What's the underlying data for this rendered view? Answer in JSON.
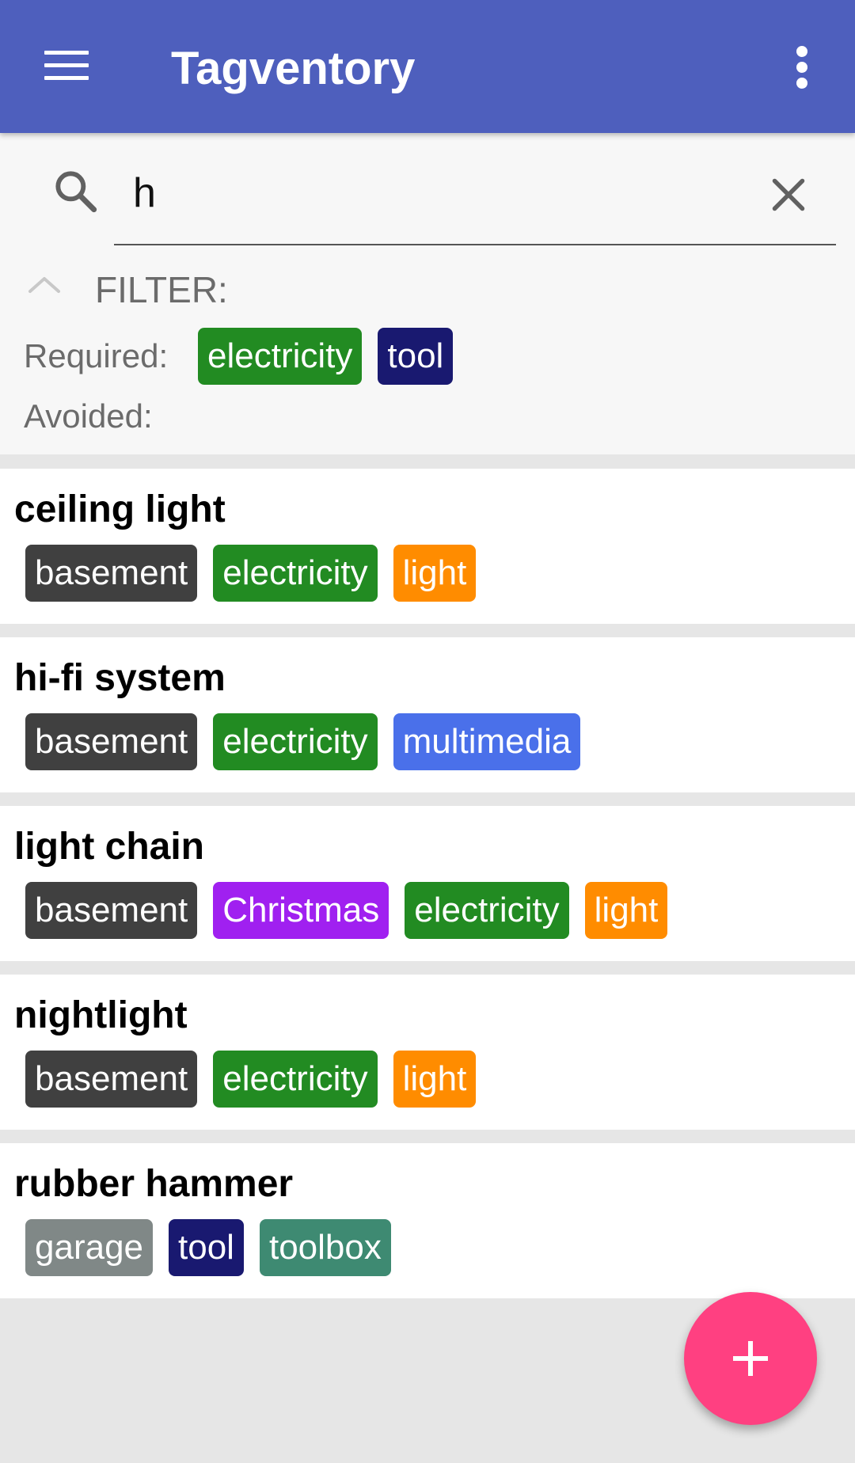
{
  "app": {
    "title": "Tagventory"
  },
  "search": {
    "value": "h"
  },
  "filter": {
    "label": "FILTER:",
    "required_label": "Required:",
    "avoided_label": "Avoided:",
    "required_tags": [
      {
        "label": "electricity",
        "color": "#228b22"
      },
      {
        "label": "tool",
        "color": "#191970"
      }
    ]
  },
  "items": [
    {
      "title": "ceiling light",
      "tags": [
        {
          "label": "basement",
          "color": "#404040"
        },
        {
          "label": "electricity",
          "color": "#228b22"
        },
        {
          "label": "light",
          "color": "#ff8c00"
        }
      ]
    },
    {
      "title": "hi-fi system",
      "tags": [
        {
          "label": "basement",
          "color": "#404040"
        },
        {
          "label": "electricity",
          "color": "#228b22"
        },
        {
          "label": "multimedia",
          "color": "#4a70ea"
        }
      ]
    },
    {
      "title": "light chain",
      "tags": [
        {
          "label": "basement",
          "color": "#404040"
        },
        {
          "label": "Christmas",
          "color": "#a020f0"
        },
        {
          "label": "electricity",
          "color": "#228b22"
        },
        {
          "label": "light",
          "color": "#ff8c00"
        }
      ]
    },
    {
      "title": "nightlight",
      "tags": [
        {
          "label": "basement",
          "color": "#404040"
        },
        {
          "label": "electricity",
          "color": "#228b22"
        },
        {
          "label": "light",
          "color": "#ff8c00"
        }
      ]
    },
    {
      "title": "rubber hammer",
      "tags": [
        {
          "label": "garage",
          "color": "#808887"
        },
        {
          "label": "tool",
          "color": "#191970"
        },
        {
          "label": "toolbox",
          "color": "#3e8a72"
        }
      ]
    }
  ],
  "icons": {
    "menu": "hamburger-menu-icon",
    "overflow": "more-vert-icon",
    "search": "search-icon",
    "clear": "close-icon",
    "filter_toggle": "chevron-up-icon",
    "add": "plus-icon"
  },
  "colors": {
    "primary": "#4e5fbd",
    "accent": "#ff4081"
  }
}
